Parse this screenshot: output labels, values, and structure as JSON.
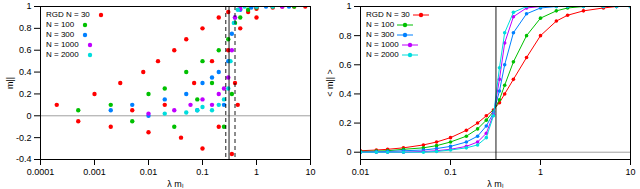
{
  "chart_data": [
    {
      "type": "scatter",
      "x_label": "λ mₗ",
      "y_label": "m||",
      "log": "x",
      "grid": false,
      "legend": "top-left",
      "xlim": [
        0.0001,
        10
      ],
      "xticks": [
        0.0001,
        0.001,
        0.01,
        0.1,
        1,
        10
      ],
      "ylim": [
        -0.4,
        1
      ],
      "yticks": [
        -0.4,
        -0.2,
        0,
        0.2,
        0.4,
        0.6,
        0.8,
        1
      ],
      "vlines": [
        {
          "value": 0.31,
          "line_style": "solid"
        },
        {
          "value": 0.27,
          "line_style": "dashed"
        },
        {
          "value": 0.4,
          "line_style": "dashed"
        }
      ],
      "hlines": [
        {
          "value": 0,
          "line_style": "solid"
        }
      ],
      "series": [
        {
          "name": "RGD N = 30",
          "color": "#ff0000",
          "marker": "circle",
          "x": [
            0.0002,
            0.0005,
            0.001,
            0.002,
            0.003,
            0.005,
            0.008,
            0.01,
            0.015,
            0.02,
            0.03,
            0.04,
            0.05,
            0.07,
            0.1,
            0.1,
            0.15,
            0.2,
            0.2,
            0.3,
            0.3,
            0.35,
            0.4,
            0.45,
            0.5,
            0.7,
            1,
            1,
            2,
            3,
            5,
            8
          ],
          "values": [
            0.1,
            -0.05,
            0.2,
            -0.1,
            0.3,
            0.05,
            0.4,
            -0.15,
            0.5,
            0.1,
            0.6,
            -0.2,
            0.7,
            0.3,
            0.8,
            -0.3,
            0.5,
            0.9,
            -0.1,
            0.6,
            0.95,
            -0.35,
            0.3,
            0.1,
            0.8,
            0.95,
            0.9,
            0.98,
            0.99,
            1,
            1,
            1
          ]
        },
        {
          "name": "N = 100",
          "color": "#00c000",
          "marker": "circle",
          "x": [
            0.0005,
            0.002,
            0.005,
            0.01,
            0.02,
            0.03,
            0.05,
            0.08,
            0.1,
            0.15,
            0.2,
            0.25,
            0.3,
            0.35,
            0.4,
            0.5,
            0.7,
            1,
            2,
            5
          ],
          "values": [
            0.05,
            0.1,
            -0.05,
            0.2,
            0.25,
            -0.1,
            0.4,
            0.15,
            0.5,
            0.3,
            0.6,
            -0.1,
            0.7,
            0.2,
            0.85,
            0.9,
            0.97,
            0.99,
            1,
            1
          ]
        },
        {
          "name": "N = 300",
          "color": "#0080ff",
          "marker": "circle",
          "x": [
            0.002,
            0.005,
            0.01,
            0.02,
            0.05,
            0.08,
            0.1,
            0.15,
            0.2,
            0.25,
            0.3,
            0.35,
            0.4,
            0.5,
            0.8,
            1.5,
            4
          ],
          "values": [
            0.05,
            0.1,
            0,
            0.15,
            0.2,
            0.05,
            0.3,
            0.35,
            0.4,
            0.1,
            0.5,
            0.75,
            0.9,
            0.97,
            0.99,
            1,
            1
          ]
        },
        {
          "name": "N = 1000",
          "color": "#c000ff",
          "marker": "circle",
          "x": [
            0.01,
            0.03,
            0.06,
            0.1,
            0.15,
            0.2,
            0.25,
            0.3,
            0.35,
            0.4,
            0.5,
            1,
            3
          ],
          "values": [
            0.02,
            0.05,
            0.1,
            0.15,
            0.1,
            0.2,
            0.25,
            0.35,
            0.6,
            0.9,
            0.98,
            1,
            1
          ]
        },
        {
          "name": "N = 2000",
          "color": "#00dddd",
          "marker": "circle",
          "x": [
            0.02,
            0.05,
            0.08,
            0.1,
            0.15,
            0.2,
            0.25,
            0.3,
            0.33,
            0.38,
            0.45,
            0.6,
            1,
            2
          ],
          "values": [
            0.02,
            0.03,
            0.05,
            0.08,
            0.05,
            0.1,
            0.15,
            0.25,
            0.5,
            0.85,
            0.97,
            1,
            1,
            1
          ]
        }
      ]
    },
    {
      "type": "line",
      "x_label": "λ mₗ",
      "y_label": "< m|| >",
      "log": "x",
      "grid": false,
      "legend": "top-left",
      "xlim": [
        0.01,
        10
      ],
      "xticks": [
        0.01,
        0.1,
        1,
        10
      ],
      "ylim": [
        -0.05,
        1
      ],
      "yticks": [
        0,
        0.2,
        0.4,
        0.6,
        0.8,
        1
      ],
      "vlines": [
        {
          "value": 0.32,
          "line_style": "solid"
        }
      ],
      "hlines": [
        {
          "value": 0,
          "line_style": "solid"
        }
      ],
      "x": [
        0.01,
        0.015,
        0.02,
        0.03,
        0.05,
        0.07,
        0.1,
        0.15,
        0.2,
        0.25,
        0.3,
        0.35,
        0.4,
        0.5,
        0.7,
        1,
        1.5,
        2,
        3,
        5,
        7,
        10
      ],
      "series": [
        {
          "name": "RGD N = 30",
          "color": "#ff0000",
          "marker": "circle",
          "values": [
            0.01,
            0.015,
            0.02,
            0.03,
            0.05,
            0.07,
            0.1,
            0.15,
            0.2,
            0.25,
            0.29,
            0.34,
            0.4,
            0.5,
            0.65,
            0.8,
            0.9,
            0.94,
            0.97,
            0.99,
            1,
            1
          ]
        },
        {
          "name": "N = 100",
          "color": "#00c000",
          "marker": "circle",
          "values": [
            0.005,
            0.008,
            0.01,
            0.02,
            0.03,
            0.045,
            0.07,
            0.11,
            0.16,
            0.22,
            0.28,
            0.36,
            0.46,
            0.62,
            0.8,
            0.92,
            0.97,
            0.99,
            1,
            1,
            1,
            1
          ]
        },
        {
          "name": "N = 300",
          "color": "#0080ff",
          "marker": "circle",
          "values": [
            0,
            0.003,
            0.005,
            0.01,
            0.015,
            0.025,
            0.04,
            0.07,
            0.11,
            0.18,
            0.27,
            0.42,
            0.6,
            0.82,
            0.95,
            0.99,
            1,
            1,
            1,
            1,
            1,
            1
          ]
        },
        {
          "name": "N = 1000",
          "color": "#c000ff",
          "marker": "circle",
          "values": [
            0,
            0,
            0,
            0,
            0.005,
            0.01,
            0.02,
            0.04,
            0.07,
            0.13,
            0.26,
            0.5,
            0.75,
            0.93,
            0.99,
            1,
            1,
            1,
            1,
            1,
            1,
            1
          ]
        },
        {
          "name": "N = 2000",
          "color": "#00dddd",
          "marker": "circle",
          "values": [
            0,
            0,
            0,
            0,
            0,
            0.005,
            0.015,
            0.03,
            0.05,
            0.1,
            0.25,
            0.58,
            0.82,
            0.96,
            1,
            1,
            1,
            1,
            1,
            1,
            1,
            1
          ]
        }
      ]
    }
  ]
}
